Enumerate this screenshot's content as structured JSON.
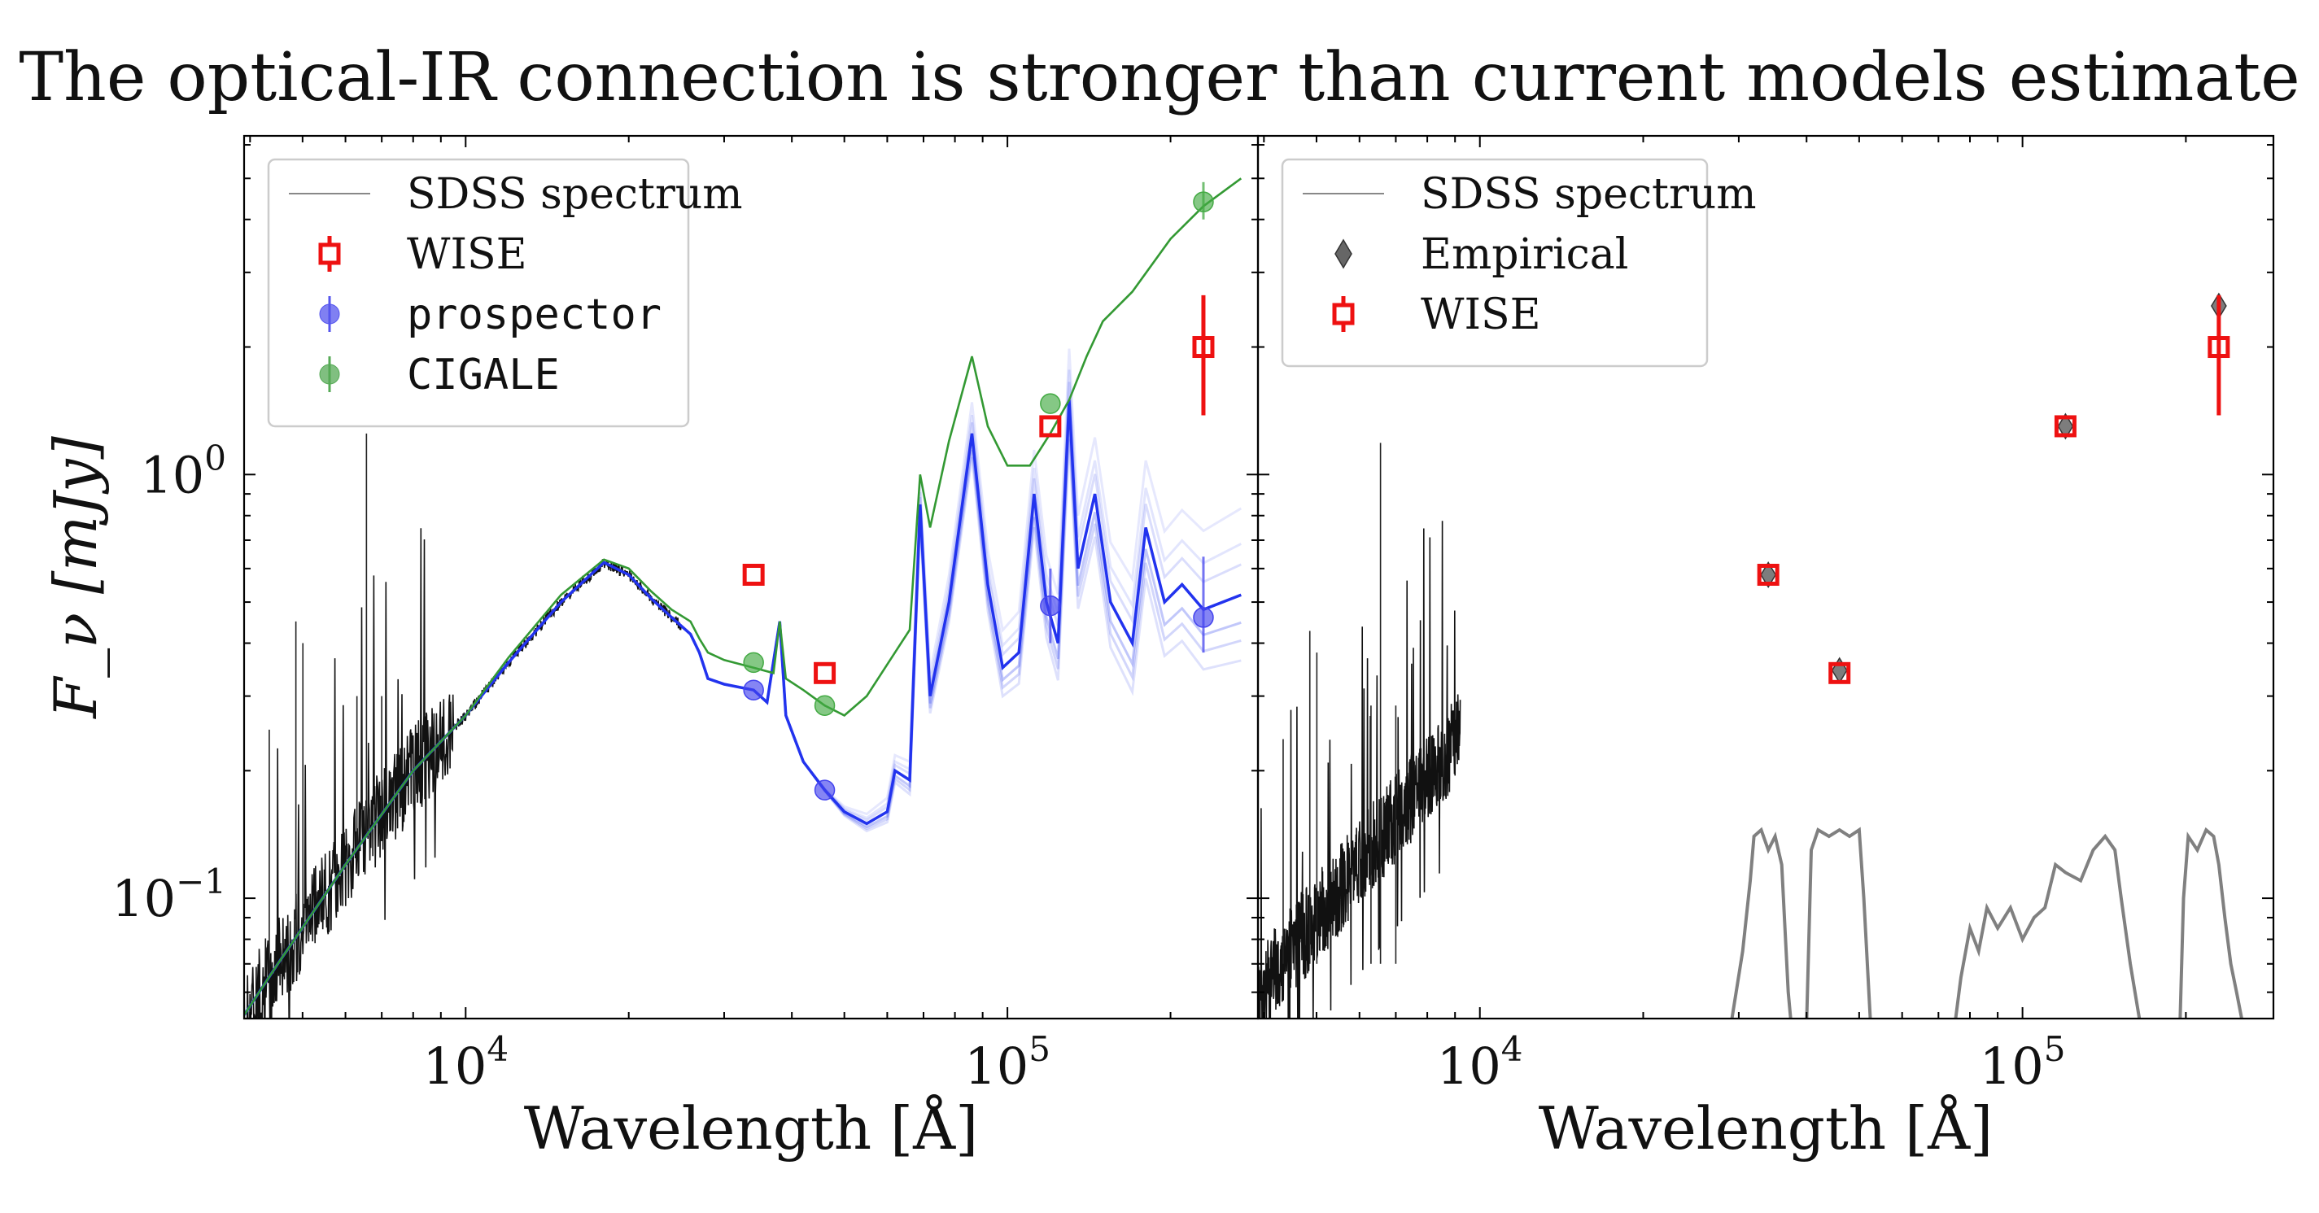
{
  "title": "The optical-IR connection is stronger than current models estimate",
  "chart_data": [
    {
      "type": "scatter",
      "panel": "left",
      "xlabel": "Wavelength [Å]",
      "ylabel": "F_ν [mJy]",
      "xscale": "log",
      "yscale": "log",
      "xlim": [
        3900,
        290000
      ],
      "ylim": [
        0.052,
        6.3
      ],
      "x_ticks": [
        10000,
        100000
      ],
      "x_tick_labels": [
        "10^4",
        "10^5"
      ],
      "y_ticks": [
        0.1,
        1.0
      ],
      "y_tick_labels": [
        "10^-1",
        "10^0"
      ],
      "legend_position": "top-left",
      "legend": [
        {
          "label": "SDSS spectrum",
          "marker": "line",
          "color": "#888888",
          "mono": false
        },
        {
          "label": "WISE",
          "marker": "square-errorbar",
          "color": "#ee1111",
          "mono": false
        },
        {
          "label": "prospector",
          "marker": "circle-errorbar",
          "color": "#5555ee",
          "mono": true
        },
        {
          "label": "CIGALE",
          "marker": "circle-errorbar",
          "color": "#55aa55",
          "mono": true
        }
      ],
      "series": [
        {
          "name": "WISE",
          "color": "#ee1111",
          "points": [
            {
              "x": 34000,
              "y": 0.58,
              "ylo": 0.58,
              "yhi": 0.58
            },
            {
              "x": 46000,
              "y": 0.34,
              "ylo": 0.34,
              "yhi": 0.34
            },
            {
              "x": 120000,
              "y": 1.3,
              "ylo": 1.3,
              "yhi": 1.3
            },
            {
              "x": 230000,
              "y": 2.0,
              "ylo": 1.38,
              "yhi": 2.65
            }
          ]
        },
        {
          "name": "prospector",
          "color": "#4444ee",
          "points": [
            {
              "x": 34000,
              "y": 0.31,
              "ylo": 0.31,
              "yhi": 0.31
            },
            {
              "x": 46000,
              "y": 0.18,
              "ylo": 0.18,
              "yhi": 0.18
            },
            {
              "x": 120000,
              "y": 0.49,
              "ylo": 0.4,
              "yhi": 0.6
            },
            {
              "x": 230000,
              "y": 0.46,
              "ylo": 0.38,
              "yhi": 0.64
            }
          ]
        },
        {
          "name": "CIGALE",
          "color": "#44aa44",
          "points": [
            {
              "x": 34000,
              "y": 0.36,
              "ylo": 0.36,
              "yhi": 0.36
            },
            {
              "x": 46000,
              "y": 0.285,
              "ylo": 0.285,
              "yhi": 0.285
            },
            {
              "x": 120000,
              "y": 1.47,
              "ylo": 1.47,
              "yhi": 1.47
            },
            {
              "x": 230000,
              "y": 4.4,
              "ylo": 4.0,
              "yhi": 4.9
            }
          ]
        }
      ],
      "cigale_model": [
        [
          3900,
          0.053
        ],
        [
          4500,
          0.07
        ],
        [
          6000,
          0.12
        ],
        [
          8000,
          0.2
        ],
        [
          10000,
          0.27
        ],
        [
          12000,
          0.37
        ],
        [
          15000,
          0.52
        ],
        [
          18000,
          0.63
        ],
        [
          20000,
          0.6
        ],
        [
          22000,
          0.53
        ],
        [
          24000,
          0.48
        ],
        [
          26000,
          0.45
        ],
        [
          27000,
          0.41
        ],
        [
          28000,
          0.38
        ],
        [
          30000,
          0.365
        ],
        [
          34000,
          0.35
        ],
        [
          37000,
          0.34
        ],
        [
          38000,
          0.45
        ],
        [
          39000,
          0.33
        ],
        [
          42000,
          0.31
        ],
        [
          46000,
          0.285
        ],
        [
          50000,
          0.27
        ],
        [
          55000,
          0.3
        ],
        [
          62000,
          0.38
        ],
        [
          66000,
          0.43
        ],
        [
          69000,
          1.0
        ],
        [
          72000,
          0.75
        ],
        [
          78000,
          1.2
        ],
        [
          86000,
          1.9
        ],
        [
          92000,
          1.3
        ],
        [
          100000,
          1.05
        ],
        [
          110000,
          1.05
        ],
        [
          120000,
          1.25
        ],
        [
          130000,
          1.5
        ],
        [
          140000,
          1.9
        ],
        [
          150000,
          2.3
        ],
        [
          170000,
          2.7
        ],
        [
          200000,
          3.6
        ],
        [
          230000,
          4.3
        ],
        [
          270000,
          5.0
        ]
      ],
      "prospector_model": [
        [
          3900,
          0.053
        ],
        [
          4500,
          0.07
        ],
        [
          6000,
          0.12
        ],
        [
          8000,
          0.2
        ],
        [
          10000,
          0.27
        ],
        [
          12000,
          0.36
        ],
        [
          15000,
          0.5
        ],
        [
          18000,
          0.62
        ],
        [
          20000,
          0.58
        ],
        [
          22000,
          0.51
        ],
        [
          24000,
          0.46
        ],
        [
          26000,
          0.42
        ],
        [
          27000,
          0.38
        ],
        [
          28000,
          0.33
        ],
        [
          30000,
          0.32
        ],
        [
          34000,
          0.31
        ],
        [
          36000,
          0.29
        ],
        [
          38000,
          0.45
        ],
        [
          39000,
          0.27
        ],
        [
          42000,
          0.21
        ],
        [
          46000,
          0.18
        ],
        [
          50000,
          0.16
        ],
        [
          55000,
          0.15
        ],
        [
          60000,
          0.16
        ],
        [
          62000,
          0.2
        ],
        [
          66000,
          0.19
        ],
        [
          69000,
          0.85
        ],
        [
          72000,
          0.3
        ],
        [
          78000,
          0.5
        ],
        [
          86000,
          1.25
        ],
        [
          92000,
          0.55
        ],
        [
          98000,
          0.35
        ],
        [
          105000,
          0.38
        ],
        [
          112000,
          0.9
        ],
        [
          118000,
          0.5
        ],
        [
          124000,
          0.4
        ],
        [
          130000,
          1.5
        ],
        [
          135000,
          0.6
        ],
        [
          145000,
          0.9
        ],
        [
          155000,
          0.5
        ],
        [
          170000,
          0.4
        ],
        [
          180000,
          0.75
        ],
        [
          195000,
          0.5
        ],
        [
          210000,
          0.55
        ],
        [
          230000,
          0.48
        ],
        [
          270000,
          0.52
        ]
      ],
      "model_draws": [
        {
          "scale": 1.18,
          "opacity": 0.18
        },
        {
          "scale": 1.32,
          "opacity": 0.14
        },
        {
          "scale": 1.6,
          "opacity": 0.12
        },
        {
          "scale": 0.86,
          "opacity": 0.3
        },
        {
          "scale": 0.78,
          "opacity": 0.22
        },
        {
          "scale": 0.7,
          "opacity": 0.16
        }
      ]
    },
    {
      "type": "scatter",
      "panel": "right",
      "xlabel": "Wavelength [Å]",
      "xscale": "log",
      "yscale": "log",
      "xlim": [
        3900,
        290000
      ],
      "ylim": [
        0.052,
        6.3
      ],
      "x_ticks": [
        10000,
        100000
      ],
      "x_tick_labels": [
        "10^4",
        "10^5"
      ],
      "legend_position": "top-left",
      "legend": [
        {
          "label": "SDSS spectrum",
          "marker": "line",
          "color": "#888888",
          "mono": false
        },
        {
          "label": "Empirical",
          "marker": "diamond",
          "color": "#555555",
          "mono": false
        },
        {
          "label": "WISE",
          "marker": "square-errorbar",
          "color": "#ee1111",
          "mono": false
        }
      ],
      "series": [
        {
          "name": "Empirical",
          "color": "#555555",
          "points": [
            {
              "x": 34000,
              "y": 0.58
            },
            {
              "x": 46000,
              "y": 0.345
            },
            {
              "x": 120000,
              "y": 1.3
            },
            {
              "x": 230000,
              "y": 2.5
            }
          ]
        },
        {
          "name": "WISE",
          "color": "#ee1111",
          "points": [
            {
              "x": 34000,
              "y": 0.58,
              "ylo": 0.58,
              "yhi": 0.58
            },
            {
              "x": 46000,
              "y": 0.34,
              "ylo": 0.34,
              "yhi": 0.34
            },
            {
              "x": 120000,
              "y": 1.3,
              "ylo": 1.3,
              "yhi": 1.3
            },
            {
              "x": 230000,
              "y": 2.0,
              "ylo": 1.38,
              "yhi": 2.65
            }
          ]
        }
      ],
      "sdss_spectrum": {
        "x_start": 3900,
        "x_end": 9200,
        "y_start": 0.06,
        "y_end": 0.24
      },
      "filter_curves": [
        [
          [
            29000,
            0.05
          ],
          [
            30500,
            0.075
          ],
          [
            31500,
            0.11
          ],
          [
            32000,
            0.14
          ],
          [
            33000,
            0.145
          ],
          [
            34000,
            0.13
          ],
          [
            35000,
            0.14
          ],
          [
            36000,
            0.12
          ],
          [
            37000,
            0.06
          ],
          [
            37500,
            0.05
          ]
        ],
        [
          [
            40000,
            0.05
          ],
          [
            40800,
            0.13
          ],
          [
            42000,
            0.145
          ],
          [
            44000,
            0.14
          ],
          [
            46000,
            0.145
          ],
          [
            48000,
            0.14
          ],
          [
            50000,
            0.145
          ],
          [
            51000,
            0.1
          ],
          [
            52500,
            0.05
          ]
        ],
        [
          [
            75000,
            0.05
          ],
          [
            77000,
            0.065
          ],
          [
            80000,
            0.085
          ],
          [
            83000,
            0.075
          ],
          [
            86000,
            0.095
          ],
          [
            90000,
            0.085
          ],
          [
            95000,
            0.095
          ],
          [
            100000,
            0.08
          ],
          [
            105000,
            0.09
          ],
          [
            110000,
            0.095
          ],
          [
            115000,
            0.12
          ],
          [
            120000,
            0.115
          ],
          [
            128000,
            0.11
          ],
          [
            135000,
            0.13
          ],
          [
            142000,
            0.14
          ],
          [
            148000,
            0.13
          ],
          [
            152000,
            0.1
          ],
          [
            158000,
            0.07
          ],
          [
            165000,
            0.05
          ]
        ],
        [
          [
            195000,
            0.05
          ],
          [
            198000,
            0.1
          ],
          [
            202000,
            0.14
          ],
          [
            210000,
            0.13
          ],
          [
            218000,
            0.145
          ],
          [
            225000,
            0.14
          ],
          [
            230000,
            0.12
          ],
          [
            236000,
            0.09
          ],
          [
            242000,
            0.07
          ],
          [
            248000,
            0.06
          ],
          [
            255000,
            0.05
          ]
        ]
      ]
    }
  ]
}
